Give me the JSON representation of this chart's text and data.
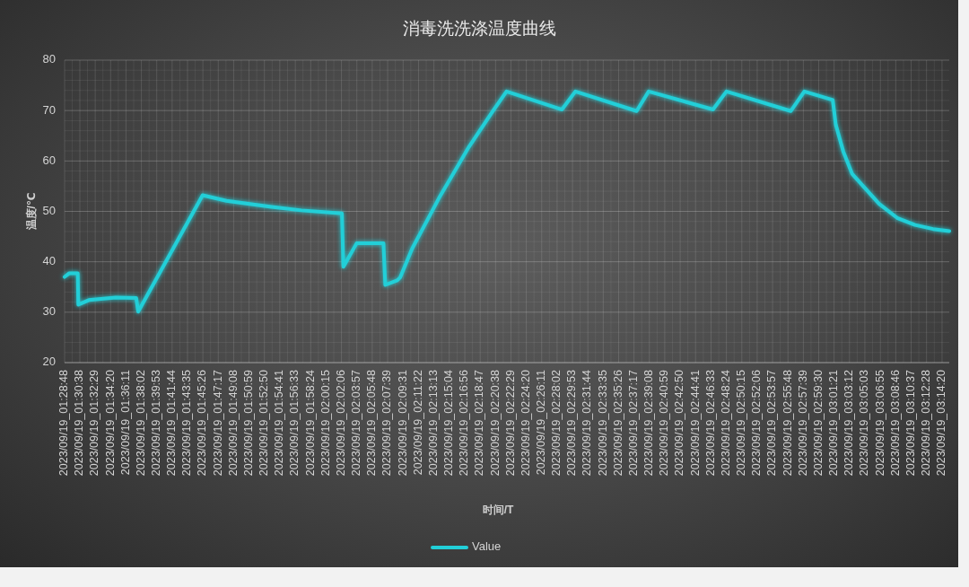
{
  "chart_data": {
    "type": "line",
    "title": "消毒洗洗涤温度曲线",
    "xlabel": "时间/T",
    "ylabel": "温度/℃",
    "series": [
      {
        "name": "Value",
        "color": "#22cfd8",
        "x": [
          "2023-09-19T01:28:48",
          "2023-09-19T01:29:20",
          "2023-09-19T01:30:23",
          "2023-09-19T01:30:27",
          "2023-09-19T01:31:43",
          "2023-09-19T01:34:57",
          "2023-09-19T01:37:25",
          "2023-09-19T01:37:39",
          "2023-09-19T01:45:24",
          "2023-09-19T01:48:16",
          "2023-09-19T01:53:41",
          "2023-09-19T01:57:17",
          "2023-09-19T02:02:09",
          "2023-09-19T02:02:20",
          "2023-09-19T02:03:56",
          "2023-09-19T02:07:09",
          "2023-09-19T02:07:22",
          "2023-09-19T02:08:48",
          "2023-09-19T02:09:10",
          "2023-09-19T02:10:36",
          "2023-09-19T02:13:51",
          "2023-09-19T02:17:26",
          "2023-09-19T02:20:19",
          "2023-09-19T02:21:57",
          "2023-09-19T02:28:37",
          "2023-09-19T02:30:14",
          "2023-09-19T02:37:36",
          "2023-09-19T02:39:03",
          "2023-09-19T02:46:47",
          "2023-09-19T02:48:24",
          "2023-09-19T02:56:09",
          "2023-09-19T02:57:46",
          "2023-09-19T03:01:11",
          "2023-09-19T03:01:33",
          "2023-09-19T03:02:27",
          "2023-09-19T03:03:32",
          "2023-09-19T03:04:58",
          "2023-09-19T03:06:46",
          "2023-09-19T03:08:56",
          "2023-09-19T03:11:05",
          "2023-09-19T03:13:15",
          "2023-09-19T03:15:12"
        ],
        "values": [
          37.0,
          37.7,
          37.7,
          31.5,
          32.4,
          32.9,
          32.8,
          30.1,
          53.2,
          52.1,
          50.9,
          50.2,
          49.6,
          39.0,
          43.7,
          43.7,
          35.4,
          36.3,
          36.9,
          42.6,
          52.7,
          62.8,
          69.9,
          73.8,
          70.2,
          73.8,
          69.9,
          73.8,
          70.2,
          73.8,
          69.9,
          73.8,
          72.1,
          67.2,
          61.9,
          57.4,
          54.8,
          51.5,
          48.7,
          47.3,
          46.5,
          46.1
        ]
      }
    ],
    "xlim": [
      "2023-09-19T01:28:48",
      "2023-09-19T03:15:12"
    ],
    "xticks": [
      {
        "value": "2023-09-19T01:28:48",
        "label": "2023/09/19_01:28:48"
      },
      {
        "value": "2023-09-19T01:30:38",
        "label": "2023/09/19_01:30:38"
      },
      {
        "value": "2023-09-19T01:32:29",
        "label": "2023/09/19_01:32:29"
      },
      {
        "value": "2023-09-19T01:34:20",
        "label": "2023/09/19_01:34:20"
      },
      {
        "value": "2023-09-19T01:36:11",
        "label": "2023/09/19_01:36:11"
      },
      {
        "value": "2023-09-19T01:38:02",
        "label": "2023/09/19_01:38:02"
      },
      {
        "value": "2023-09-19T01:39:53",
        "label": "2023/09/19_01:39:53"
      },
      {
        "value": "2023-09-19T01:41:44",
        "label": "2023/09/19_01:41:44"
      },
      {
        "value": "2023-09-19T01:43:35",
        "label": "2023/09/19_01:43:35"
      },
      {
        "value": "2023-09-19T01:45:26",
        "label": "2023/09/19_01:45:26"
      },
      {
        "value": "2023-09-19T01:47:17",
        "label": "2023/09/19_01:47:17"
      },
      {
        "value": "2023-09-19T01:49:08",
        "label": "2023/09/19_01:49:08"
      },
      {
        "value": "2023-09-19T01:50:59",
        "label": "2023/09/19_01:50:59"
      },
      {
        "value": "2023-09-19T01:52:50",
        "label": "2023/09/19_01:52:50"
      },
      {
        "value": "2023-09-19T01:54:41",
        "label": "2023/09/19_01:54:41"
      },
      {
        "value": "2023-09-19T01:56:33",
        "label": "2023/09/19_01:56:33"
      },
      {
        "value": "2023-09-19T01:58:24",
        "label": "2023/09/19_01:58:24"
      },
      {
        "value": "2023-09-19T02:00:15",
        "label": "2023/09/19_02:00:15"
      },
      {
        "value": "2023-09-19T02:02:06",
        "label": "2023/09/19_02:02:06"
      },
      {
        "value": "2023-09-19T02:03:57",
        "label": "2023/09/19_02:03:57"
      },
      {
        "value": "2023-09-19T02:05:48",
        "label": "2023/09/19_02:05:48"
      },
      {
        "value": "2023-09-19T02:07:39",
        "label": "2023/09/19_02:07:39"
      },
      {
        "value": "2023-09-19T02:09:31",
        "label": "2023/09/19_02:09:31"
      },
      {
        "value": "2023-09-19T02:11:22",
        "label": "2023/09/19_02:11:22"
      },
      {
        "value": "2023-09-19T02:13:13",
        "label": "2023/09/19_02:13:13"
      },
      {
        "value": "2023-09-19T02:15:04",
        "label": "2023/09/19_02:15:04"
      },
      {
        "value": "2023-09-19T02:16:56",
        "label": "2023/09/19_02:16:56"
      },
      {
        "value": "2023-09-19T02:18:47",
        "label": "2023/09/19_02:18:47"
      },
      {
        "value": "2023-09-19T02:20:38",
        "label": "2023/09/19_02:20:38"
      },
      {
        "value": "2023-09-19T02:22:29",
        "label": "2023/09/19_02:22:29"
      },
      {
        "value": "2023-09-19T02:24:20",
        "label": "2023/09/19_02:24:20"
      },
      {
        "value": "2023-09-19T02:26:11",
        "label": "2023/09/19_02:26:11"
      },
      {
        "value": "2023-09-19T02:28:02",
        "label": "2023/09/19_02:28:02"
      },
      {
        "value": "2023-09-19T02:29:53",
        "label": "2023/09/19_02:29:53"
      },
      {
        "value": "2023-09-19T02:31:44",
        "label": "2023/09/19_02:31:44"
      },
      {
        "value": "2023-09-19T02:33:35",
        "label": "2023/09/19_02:33:35"
      },
      {
        "value": "2023-09-19T02:35:26",
        "label": "2023/09/19_02:35:26"
      },
      {
        "value": "2023-09-19T02:37:17",
        "label": "2023/09/19_02:37:17"
      },
      {
        "value": "2023-09-19T02:39:08",
        "label": "2023/09/19_02:39:08"
      },
      {
        "value": "2023-09-19T02:40:59",
        "label": "2023/09/19_02:40:59"
      },
      {
        "value": "2023-09-19T02:42:50",
        "label": "2023/09/19_02:42:50"
      },
      {
        "value": "2023-09-19T02:44:41",
        "label": "2023/09/19_02:44:41"
      },
      {
        "value": "2023-09-19T02:46:33",
        "label": "2023/09/19_02:46:33"
      },
      {
        "value": "2023-09-19T02:48:24",
        "label": "2023/09/19_02:48:24"
      },
      {
        "value": "2023-09-19T02:50:15",
        "label": "2023/09/19_02:50:15"
      },
      {
        "value": "2023-09-19T02:52:06",
        "label": "2023/09/19_02:52:06"
      },
      {
        "value": "2023-09-19T02:53:57",
        "label": "2023/09/19_02:53:57"
      },
      {
        "value": "2023-09-19T02:55:48",
        "label": "2023/09/19_02:55:48"
      },
      {
        "value": "2023-09-19T02:57:39",
        "label": "2023/09/19_02:57:39"
      },
      {
        "value": "2023-09-19T02:59:30",
        "label": "2023/09/19_02:59:30"
      },
      {
        "value": "2023-09-19T03:01:21",
        "label": "2023/09/19_03:01:21"
      },
      {
        "value": "2023-09-19T03:03:12",
        "label": "2023/09/19_03:03:12"
      },
      {
        "value": "2023-09-19T03:05:03",
        "label": "2023/09/19_03:05:03"
      },
      {
        "value": "2023-09-19T03:06:55",
        "label": "2023/09/19_03:06:55"
      },
      {
        "value": "2023-09-19T03:08:46",
        "label": "2023/09/19_03:08:46"
      },
      {
        "value": "2023-09-19T03:10:37",
        "label": "2023/09/19_03:10:37"
      },
      {
        "value": "2023-09-19T03:12:28",
        "label": "2023/09/19_03:12:28"
      },
      {
        "value": "2023-09-19T03:14:20",
        "label": "2023/09/19_03:14:20"
      }
    ],
    "ylim": [
      20,
      80
    ],
    "yticks": [
      20,
      30,
      40,
      50,
      60,
      70,
      80
    ],
    "grid": true,
    "legend": "bottom",
    "line_style": "solid"
  }
}
